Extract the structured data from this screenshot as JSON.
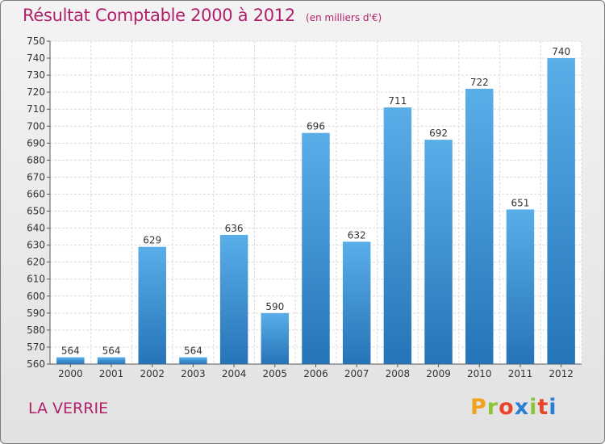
{
  "header": {
    "title": "Résultat Comptable 2000 à 2012",
    "subtitle": "(en milliers d'€)"
  },
  "footer": {
    "location": "LA VERRIE",
    "logo_letters": [
      "P",
      "r",
      "o",
      "x",
      "i",
      "t",
      "i"
    ],
    "logo_colors": [
      "#f0a21a",
      "#8cc43c",
      "#e8452c",
      "#2a7fd4",
      "#8cc43c",
      "#e8452c",
      "#2a7fd4"
    ]
  },
  "colors": {
    "bar_light": "#5aaee8",
    "bar_dark": "#2674b8",
    "title": "#b0216b"
  },
  "chart_data": {
    "type": "bar",
    "title": "Résultat Comptable 2000 à 2012",
    "xlabel": "",
    "ylabel": "",
    "categories": [
      "2000",
      "2001",
      "2002",
      "2003",
      "2004",
      "2005",
      "2006",
      "2007",
      "2008",
      "2009",
      "2010",
      "2011",
      "2012"
    ],
    "values": [
      564,
      564,
      629,
      564,
      636,
      590,
      696,
      632,
      711,
      692,
      722,
      651,
      740
    ],
    "ylim": [
      560,
      750
    ],
    "ytick_step": 10,
    "grid": true
  }
}
